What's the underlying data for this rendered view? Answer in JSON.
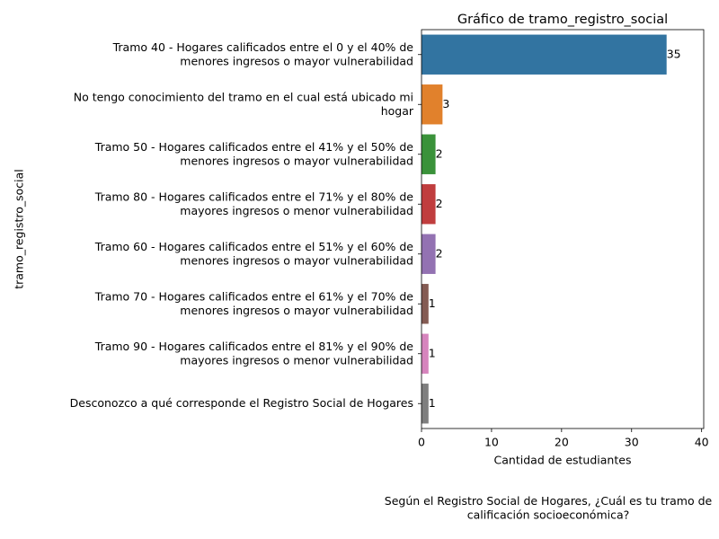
{
  "chart_data": {
    "type": "barh",
    "title": "Gráfico de tramo_registro_social",
    "xlabel": "Cantidad de estudiantes",
    "ylabel": "tramo_registro_social",
    "caption": "Según el Registro Social de Hogares, ¿Cuál es tu tramo de\ncalificación socioeconómica?",
    "categories": [
      "Tramo 40 - Hogares calificados entre el 0 y el 40% de\nmenores ingresos o mayor vulnerabilidad",
      "No tengo conocimiento del tramo en el cual está ubicado mi\nhogar",
      "Tramo 50 - Hogares calificados entre el 41% y el 50% de\nmenores ingresos o mayor vulnerabilidad",
      "Tramo 80 - Hogares calificados entre el 71% y el 80% de\nmayores ingresos o menor vulnerabilidad",
      "Tramo 60 - Hogares calificados entre el 51% y el 60% de\nmenores ingresos o mayor vulnerabilidad",
      "Tramo 70 - Hogares calificados entre el 61% y el 70% de\nmenores ingresos o mayor vulnerabilidad",
      "Tramo 90 - Hogares calificados entre el 81% y el 90% de\nmayores ingresos o menor vulnerabilidad",
      "Desconozco a qué corresponde el Registro Social de Hogares"
    ],
    "values": [
      35,
      3,
      2,
      2,
      2,
      1,
      1,
      1
    ],
    "colors": [
      "#3274a1",
      "#e1812c",
      "#3a923a",
      "#c03d3e",
      "#9372b2",
      "#845b53",
      "#d684bd",
      "#7f7f7f"
    ],
    "xlim": [
      0,
      40.3
    ],
    "xticks": [
      0,
      10,
      20,
      30,
      40
    ]
  }
}
